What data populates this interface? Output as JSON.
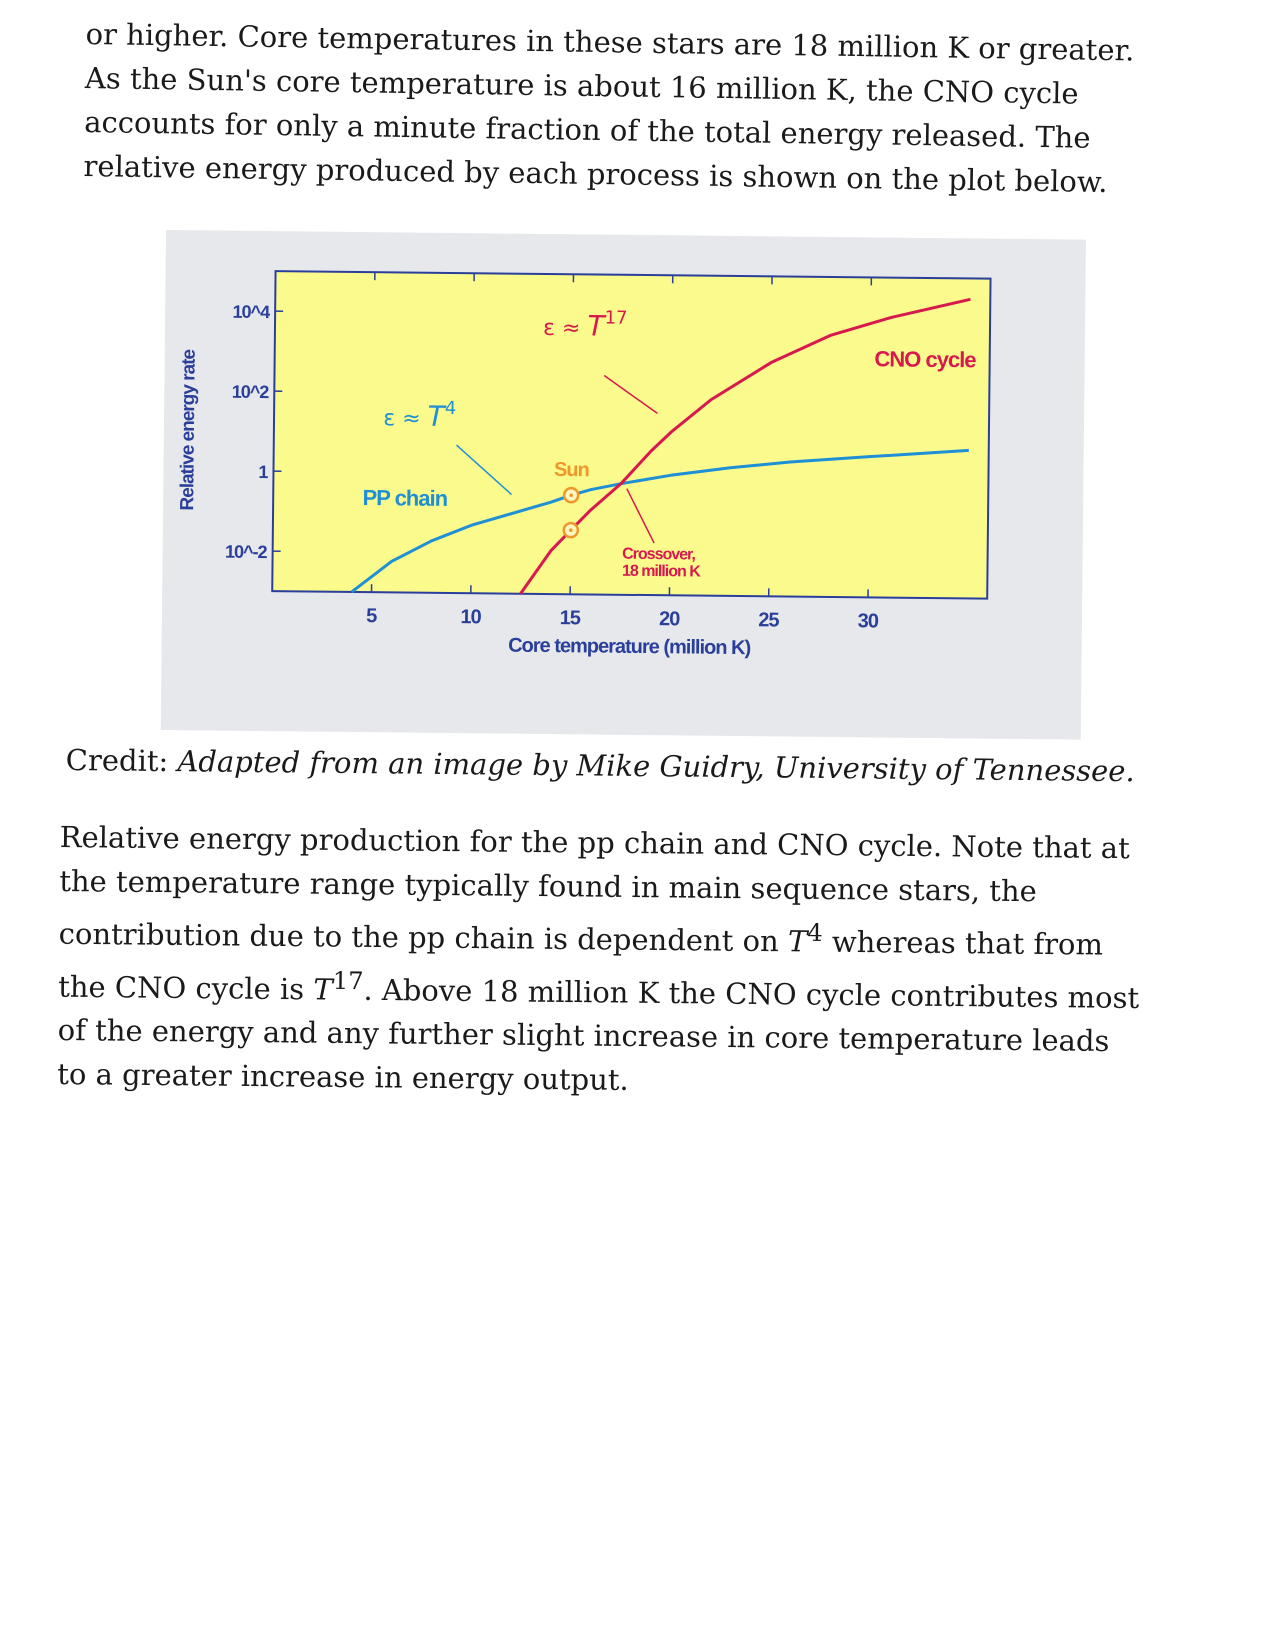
{
  "intro_text": "or higher. Core temperatures in these stars are 18 million K or greater. As the Sun's core temperature is about 16 million K, the CNO cycle accounts for only a minute fraction of the total energy released. The relative energy produced by each process is shown on the plot below.",
  "credit": {
    "prefix": "Credit: ",
    "text": "Adapted from an image by Mike Guidry, University of Tennessee."
  },
  "caption": {
    "part1": "Relative energy production for the pp chain and CNO cycle. Note that at the temperature range typically found in main sequence stars, the contribution due to the pp chain is dependent on ",
    "t": "T",
    "sup1": "4",
    "part2": " whereas that from the CNO cycle is ",
    "sup2": "17",
    "part3": ". Above 18 million K the CNO cycle contributes most of the energy and any further slight increase in core temperature leads to a greater increase in energy output."
  },
  "chart_data": {
    "type": "line",
    "xlabel": "Core temperature (million K)",
    "ylabel": "Relative energy rate",
    "x_ticks": [
      "5",
      "10",
      "15",
      "20",
      "25",
      "30"
    ],
    "y_ticks": [
      "10^-2",
      "1",
      "10^2",
      "10^4"
    ],
    "y_scale": "log",
    "xlim": [
      0,
      36
    ],
    "ylim": [
      0.001,
      100000
    ],
    "plot_background": "#fbfa8c",
    "series": [
      {
        "name": "PP chain",
        "color": "#1f8fd6",
        "x": [
          4,
          6,
          8,
          10,
          12,
          14,
          15,
          16,
          17.5,
          20,
          23,
          26,
          30,
          35
        ],
        "y": [
          0.001,
          0.006,
          0.02,
          0.05,
          0.1,
          0.2,
          0.3,
          0.42,
          0.6,
          1.0,
          1.6,
          2.3,
          3.3,
          5
        ]
      },
      {
        "name": "CNO cycle",
        "color": "#d8194f",
        "x": [
          12.5,
          14,
          15,
          16,
          17.5,
          19,
          20,
          22,
          25,
          28,
          31,
          35
        ],
        "y": [
          0.001,
          0.012,
          0.04,
          0.13,
          0.6,
          4,
          12,
          80,
          700,
          3500,
          10000,
          30000
        ]
      }
    ],
    "annotations": {
      "pp_formula": {
        "eps": "ε ≈ ",
        "t": "T",
        "exp": "4"
      },
      "cno_formula": {
        "eps": "ε ≈ ",
        "t": "T",
        "exp": "17"
      },
      "sun": "Sun",
      "crossover_line1": "Crossover,",
      "crossover_line2": "18 million K",
      "sun_points": [
        {
          "series": "PP chain",
          "x": 15,
          "y": 0.3
        },
        {
          "series": "CNO cycle",
          "x": 15,
          "y": 0.04
        }
      ],
      "sun_color": "#f0962a",
      "axis_color": "#2a3f9a"
    }
  }
}
